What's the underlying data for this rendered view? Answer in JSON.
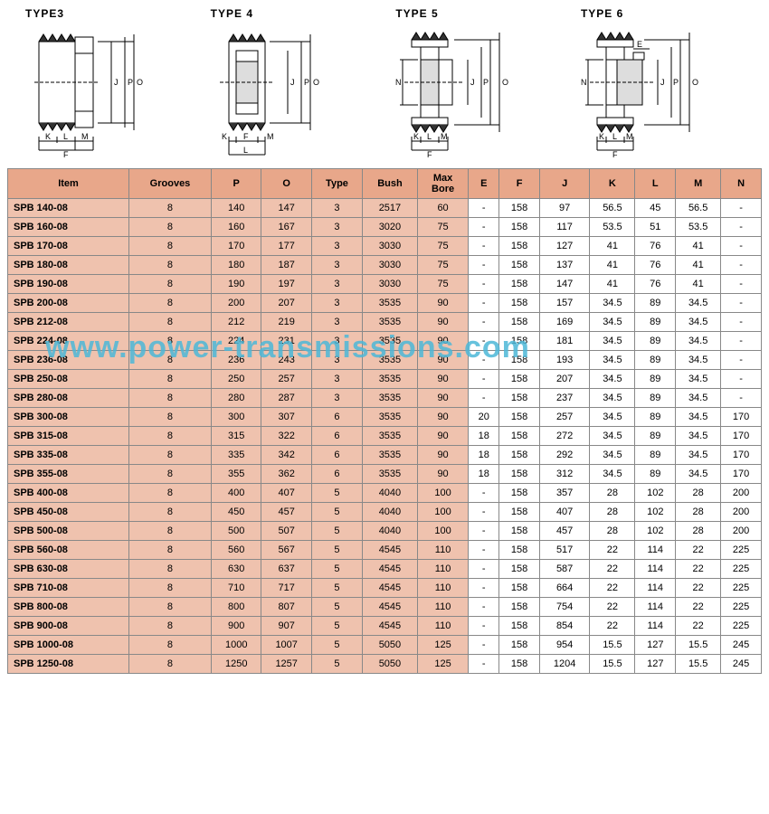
{
  "diagrams": [
    {
      "title": "TYPE3"
    },
    {
      "title": "TYPE 4"
    },
    {
      "title": "TYPE 5"
    },
    {
      "title": "TYPE 6"
    }
  ],
  "watermark": "www.power-transmissions.com",
  "table": {
    "headers": [
      "Item",
      "Grooves",
      "P",
      "O",
      "Type",
      "Bush",
      "Max Bore",
      "E",
      "F",
      "J",
      "K",
      "L",
      "M",
      "N"
    ],
    "shaded_cols": 7,
    "rows": [
      [
        "SPB 140-08",
        "8",
        "140",
        "147",
        "3",
        "2517",
        "60",
        "-",
        "158",
        "97",
        "56.5",
        "45",
        "56.5",
        "-"
      ],
      [
        "SPB 160-08",
        "8",
        "160",
        "167",
        "3",
        "3020",
        "75",
        "-",
        "158",
        "117",
        "53.5",
        "51",
        "53.5",
        "-"
      ],
      [
        "SPB 170-08",
        "8",
        "170",
        "177",
        "3",
        "3030",
        "75",
        "-",
        "158",
        "127",
        "41",
        "76",
        "41",
        "-"
      ],
      [
        "SPB 180-08",
        "8",
        "180",
        "187",
        "3",
        "3030",
        "75",
        "-",
        "158",
        "137",
        "41",
        "76",
        "41",
        "-"
      ],
      [
        "SPB 190-08",
        "8",
        "190",
        "197",
        "3",
        "3030",
        "75",
        "-",
        "158",
        "147",
        "41",
        "76",
        "41",
        "-"
      ],
      [
        "SPB 200-08",
        "8",
        "200",
        "207",
        "3",
        "3535",
        "90",
        "-",
        "158",
        "157",
        "34.5",
        "89",
        "34.5",
        "-"
      ],
      [
        "SPB 212-08",
        "8",
        "212",
        "219",
        "3",
        "3535",
        "90",
        "-",
        "158",
        "169",
        "34.5",
        "89",
        "34.5",
        "-"
      ],
      [
        "SPB 224-08",
        "8",
        "224",
        "231",
        "3",
        "3535",
        "90",
        "-",
        "158",
        "181",
        "34.5",
        "89",
        "34.5",
        "-"
      ],
      [
        "SPB 236-08",
        "8",
        "236",
        "243",
        "3",
        "3535",
        "90",
        "-",
        "158",
        "193",
        "34.5",
        "89",
        "34.5",
        "-"
      ],
      [
        "SPB 250-08",
        "8",
        "250",
        "257",
        "3",
        "3535",
        "90",
        "-",
        "158",
        "207",
        "34.5",
        "89",
        "34.5",
        "-"
      ],
      [
        "SPB 280-08",
        "8",
        "280",
        "287",
        "3",
        "3535",
        "90",
        "-",
        "158",
        "237",
        "34.5",
        "89",
        "34.5",
        "-"
      ],
      [
        "SPB 300-08",
        "8",
        "300",
        "307",
        "6",
        "3535",
        "90",
        "20",
        "158",
        "257",
        "34.5",
        "89",
        "34.5",
        "170"
      ],
      [
        "SPB 315-08",
        "8",
        "315",
        "322",
        "6",
        "3535",
        "90",
        "18",
        "158",
        "272",
        "34.5",
        "89",
        "34.5",
        "170"
      ],
      [
        "SPB 335-08",
        "8",
        "335",
        "342",
        "6",
        "3535",
        "90",
        "18",
        "158",
        "292",
        "34.5",
        "89",
        "34.5",
        "170"
      ],
      [
        "SPB 355-08",
        "8",
        "355",
        "362",
        "6",
        "3535",
        "90",
        "18",
        "158",
        "312",
        "34.5",
        "89",
        "34.5",
        "170"
      ],
      [
        "SPB 400-08",
        "8",
        "400",
        "407",
        "5",
        "4040",
        "100",
        "-",
        "158",
        "357",
        "28",
        "102",
        "28",
        "200"
      ],
      [
        "SPB 450-08",
        "8",
        "450",
        "457",
        "5",
        "4040",
        "100",
        "-",
        "158",
        "407",
        "28",
        "102",
        "28",
        "200"
      ],
      [
        "SPB 500-08",
        "8",
        "500",
        "507",
        "5",
        "4040",
        "100",
        "-",
        "158",
        "457",
        "28",
        "102",
        "28",
        "200"
      ],
      [
        "SPB 560-08",
        "8",
        "560",
        "567",
        "5",
        "4545",
        "110",
        "-",
        "158",
        "517",
        "22",
        "114",
        "22",
        "225"
      ],
      [
        "SPB 630-08",
        "8",
        "630",
        "637",
        "5",
        "4545",
        "110",
        "-",
        "158",
        "587",
        "22",
        "114",
        "22",
        "225"
      ],
      [
        "SPB 710-08",
        "8",
        "710",
        "717",
        "5",
        "4545",
        "110",
        "-",
        "158",
        "664",
        "22",
        "114",
        "22",
        "225"
      ],
      [
        "SPB 800-08",
        "8",
        "800",
        "807",
        "5",
        "4545",
        "110",
        "-",
        "158",
        "754",
        "22",
        "114",
        "22",
        "225"
      ],
      [
        "SPB 900-08",
        "8",
        "900",
        "907",
        "5",
        "4545",
        "110",
        "-",
        "158",
        "854",
        "22",
        "114",
        "22",
        "225"
      ],
      [
        "SPB 1000-08",
        "8",
        "1000",
        "1007",
        "5",
        "5050",
        "125",
        "-",
        "158",
        "954",
        "15.5",
        "127",
        "15.5",
        "245"
      ],
      [
        "SPB 1250-08",
        "8",
        "1250",
        "1257",
        "5",
        "5050",
        "125",
        "-",
        "158",
        "1204",
        "15.5",
        "127",
        "15.5",
        "245"
      ]
    ]
  },
  "diagram_labels": {
    "bottom": [
      "K",
      "L",
      "M",
      "F"
    ],
    "right": [
      "N",
      "J",
      "P",
      "O",
      "E"
    ]
  }
}
